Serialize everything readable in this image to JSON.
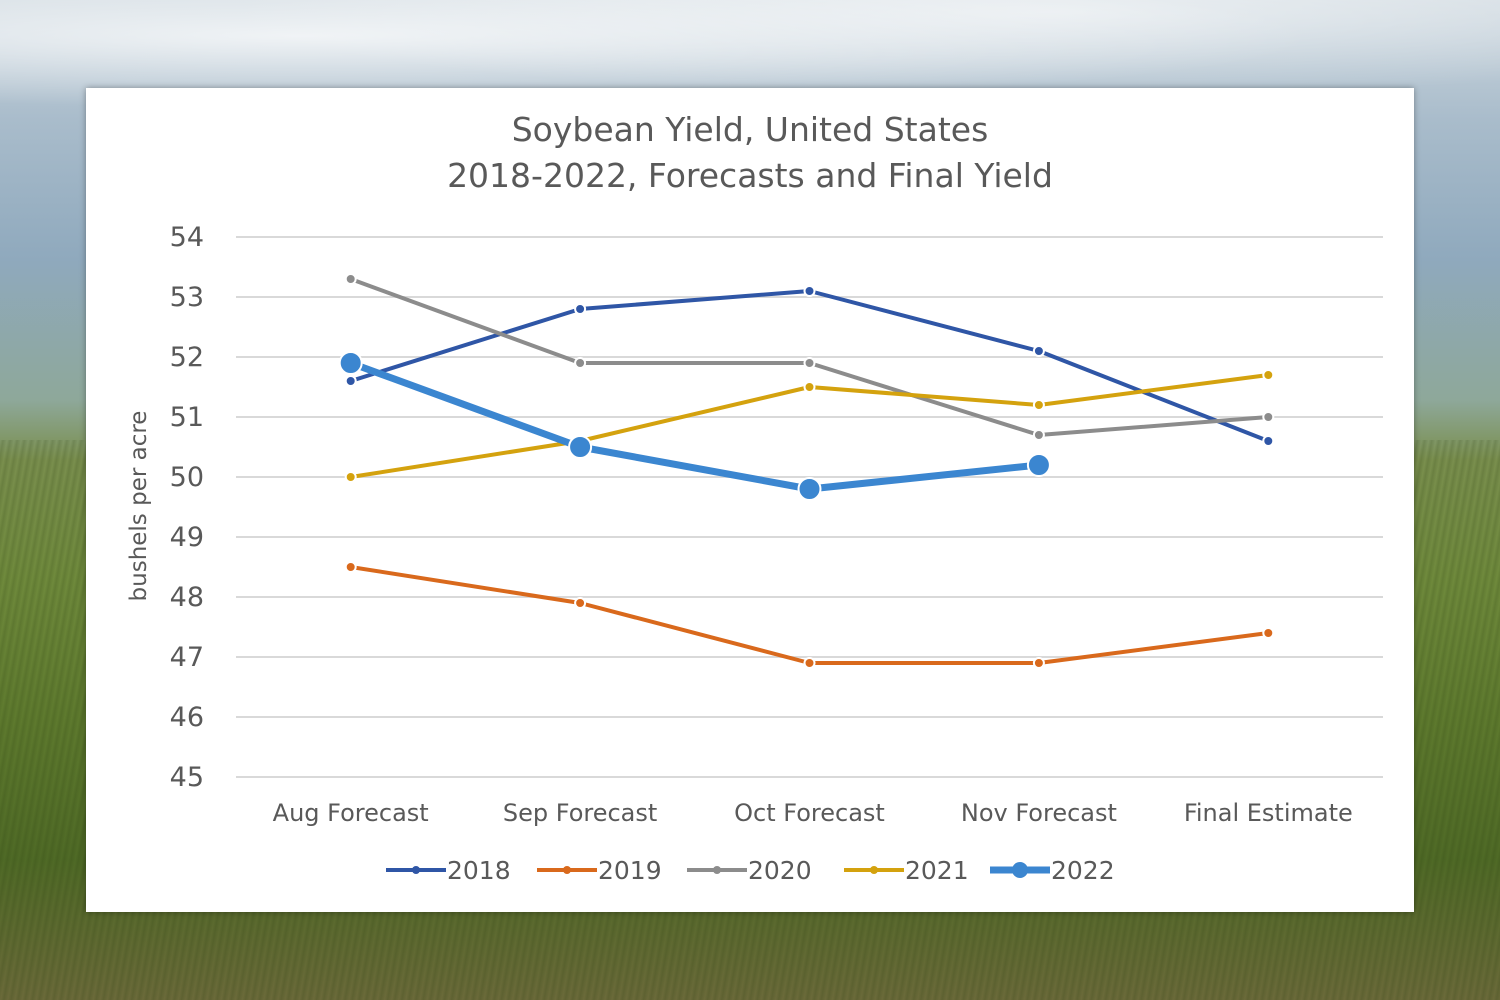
{
  "chart_data": {
    "type": "line",
    "title_lines": [
      "Soybean Yield, United States",
      "2018-2022, Forecasts and Final Yield"
    ],
    "ylabel": "bushels per acre",
    "xlabel": "",
    "categories": [
      "Aug Forecast",
      "Sep Forecast",
      "Oct Forecast",
      "Nov Forecast",
      "Final Estimate"
    ],
    "yticks": [
      "45",
      "46",
      "47",
      "48",
      "49",
      "50",
      "51",
      "52",
      "53",
      "54"
    ],
    "ylim": [
      45,
      54
    ],
    "grid": true,
    "legend_position": "bottom",
    "series": [
      {
        "name": "2018",
        "color": "#2f56a6",
        "values": [
          51.6,
          52.8,
          53.1,
          52.1,
          50.6
        ]
      },
      {
        "name": "2019",
        "color": "#d9691c",
        "values": [
          48.5,
          47.9,
          46.9,
          46.9,
          47.4
        ]
      },
      {
        "name": "2020",
        "color": "#8c8c8c",
        "values": [
          53.3,
          51.9,
          51.9,
          50.7,
          51.0
        ]
      },
      {
        "name": "2021",
        "color": "#d4a20e",
        "values": [
          50.0,
          50.6,
          51.5,
          51.2,
          51.7
        ]
      },
      {
        "name": "2022",
        "color": "#3b86d0",
        "values": [
          51.9,
          50.5,
          49.8,
          50.2,
          null
        ],
        "emphasis": true
      }
    ]
  }
}
